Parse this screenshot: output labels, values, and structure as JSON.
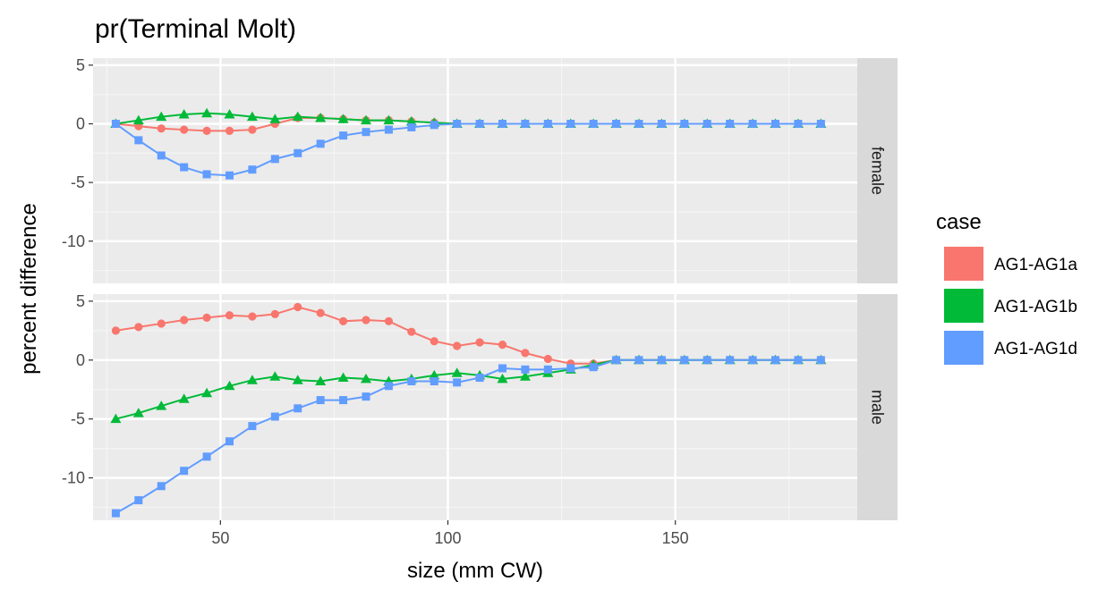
{
  "chart_data": {
    "type": "line",
    "title": "pr(Terminal Molt)",
    "xlabel": "size (mm CW)",
    "ylabel": "percent difference",
    "xlim": [
      22,
      190
    ],
    "ylim": [
      -13.6,
      5.6
    ],
    "x_ticks": [
      50,
      100,
      150
    ],
    "y_ticks": [
      5,
      0,
      -5,
      -10
    ],
    "grid": true,
    "legend": {
      "title": "case",
      "position": "right"
    },
    "x": [
      27,
      32,
      37,
      42,
      47,
      52,
      57,
      62,
      67,
      72,
      77,
      82,
      87,
      92,
      97,
      102,
      107,
      112,
      117,
      122,
      127,
      132,
      137,
      142,
      147,
      152,
      157,
      162,
      167,
      172,
      177,
      182
    ],
    "panels": [
      {
        "label": "female",
        "series": [
          {
            "name": "AG1-AG1a",
            "color": "#F8766D",
            "marker": "circle",
            "values": [
              0,
              -0.2,
              -0.4,
              -0.5,
              -0.6,
              -0.6,
              -0.5,
              0,
              0.5,
              0.5,
              0.4,
              0.3,
              0.3,
              0.2,
              0.1,
              0,
              0,
              0,
              0,
              0,
              0,
              0,
              0,
              0,
              0,
              0,
              0,
              0,
              0,
              0,
              0,
              0
            ]
          },
          {
            "name": "AG1-AG1b",
            "color": "#00BA38",
            "marker": "triangle",
            "values": [
              0,
              0.3,
              0.6,
              0.8,
              0.9,
              0.8,
              0.6,
              0.4,
              0.6,
              0.5,
              0.4,
              0.3,
              0.3,
              0.2,
              0.1,
              0,
              0,
              0,
              0,
              0,
              0,
              0,
              0,
              0,
              0,
              0,
              0,
              0,
              0,
              0,
              0,
              0
            ]
          },
          {
            "name": "AG1-AG1d",
            "color": "#619CFF",
            "marker": "square",
            "values": [
              0,
              -1.4,
              -2.7,
              -3.7,
              -4.3,
              -4.4,
              -3.9,
              -3.0,
              -2.5,
              -1.7,
              -1.0,
              -0.7,
              -0.5,
              -0.3,
              -0.1,
              0,
              0,
              0,
              0,
              0,
              0,
              0,
              0,
              0,
              0,
              0,
              0,
              0,
              0,
              0,
              0,
              0
            ]
          }
        ]
      },
      {
        "label": "male",
        "series": [
          {
            "name": "AG1-AG1a",
            "color": "#F8766D",
            "marker": "circle",
            "values": [
              2.5,
              2.8,
              3.1,
              3.4,
              3.6,
              3.8,
              3.7,
              3.9,
              4.5,
              4.0,
              3.3,
              3.4,
              3.3,
              2.4,
              1.6,
              1.2,
              1.5,
              1.3,
              0.6,
              0.1,
              -0.3,
              -0.3,
              0,
              0,
              0,
              0,
              0,
              0,
              0,
              0,
              0,
              0
            ]
          },
          {
            "name": "AG1-AG1b",
            "color": "#00BA38",
            "marker": "triangle",
            "values": [
              -5.0,
              -4.5,
              -3.9,
              -3.3,
              -2.8,
              -2.2,
              -1.7,
              -1.4,
              -1.7,
              -1.8,
              -1.5,
              -1.6,
              -1.8,
              -1.6,
              -1.3,
              -1.1,
              -1.3,
              -1.6,
              -1.4,
              -1.1,
              -0.8,
              -0.4,
              0,
              0,
              0,
              0,
              0,
              0,
              0,
              0,
              0,
              0
            ]
          },
          {
            "name": "AG1-AG1d",
            "color": "#619CFF",
            "marker": "square",
            "values": [
              -13.0,
              -11.9,
              -10.7,
              -9.4,
              -8.2,
              -6.9,
              -5.6,
              -4.8,
              -4.1,
              -3.4,
              -3.4,
              -3.1,
              -2.2,
              -1.8,
              -1.8,
              -1.9,
              -1.5,
              -0.7,
              -0.8,
              -0.8,
              -0.7,
              -0.6,
              0,
              0,
              0,
              0,
              0,
              0,
              0,
              0,
              0,
              0
            ]
          }
        ]
      }
    ]
  }
}
